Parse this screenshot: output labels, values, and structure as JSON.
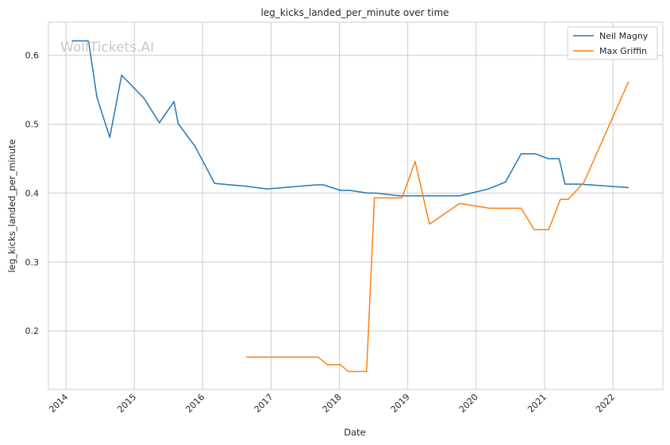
{
  "watermark": "WolfTickets.AI",
  "chart_data": {
    "type": "line",
    "title": "leg_kicks_landed_per_minute over time",
    "xlabel": "Date",
    "ylabel": "leg_kicks_landed_per_minute",
    "x_tick_labels": [
      "2014",
      "2015",
      "2016",
      "2017",
      "2018",
      "2019",
      "2020",
      "2021",
      "2022"
    ],
    "y_tick_labels": [
      "0.2",
      "0.3",
      "0.4",
      "0.5",
      "0.6"
    ],
    "ylim": [
      0.115,
      0.648
    ],
    "xlim": [
      "2013-09-29",
      "2022-09-25"
    ],
    "grid": true,
    "legend_position": "top-right",
    "series": [
      {
        "name": "Neil Magny",
        "color": "#1f77b4",
        "x": [
          "2014-02-01",
          "2014-05-01",
          "2014-06-15",
          "2014-08-23",
          "2014-10-25",
          "2015-02-21",
          "2015-05-15",
          "2015-08-01",
          "2015-08-23",
          "2015-11-21",
          "2016-03-05",
          "2016-08-20",
          "2016-12-10",
          "2017-09-02",
          "2017-10-07",
          "2018-01-06",
          "2018-02-24",
          "2018-06-01",
          "2018-07-14",
          "2018-11-17",
          "2019-02-09",
          "2019-05-18",
          "2019-10-05",
          "2020-03-07",
          "2020-06-06",
          "2020-08-29",
          "2020-11-14",
          "2021-01-20",
          "2021-03-20",
          "2021-04-20",
          "2021-07-10",
          "2022-03-26"
        ],
        "y": [
          0.621,
          0.621,
          0.539,
          0.481,
          0.571,
          0.538,
          0.502,
          0.533,
          0.501,
          0.468,
          0.414,
          0.41,
          0.406,
          0.412,
          0.412,
          0.404,
          0.404,
          0.4,
          0.4,
          0.396,
          0.396,
          0.396,
          0.396,
          0.406,
          0.416,
          0.457,
          0.457,
          0.45,
          0.45,
          0.413,
          0.413,
          0.408
        ]
      },
      {
        "name": "Max Griffin",
        "color": "#ff7f0e",
        "x": [
          "2016-08-20",
          "2017-09-09",
          "2017-10-28",
          "2018-01-06",
          "2018-02-17",
          "2018-05-26",
          "2018-07-07",
          "2018-12-01",
          "2019-02-09",
          "2019-04-27",
          "2019-10-05",
          "2020-03-14",
          "2020-08-29",
          "2020-11-07",
          "2021-01-23",
          "2021-03-27",
          "2021-05-08",
          "2021-07-31",
          "2022-03-26"
        ],
        "y": [
          0.162,
          0.162,
          0.151,
          0.151,
          0.141,
          0.141,
          0.393,
          0.393,
          0.446,
          0.355,
          0.385,
          0.378,
          0.378,
          0.347,
          0.347,
          0.391,
          0.391,
          0.416,
          0.562
        ]
      }
    ]
  }
}
